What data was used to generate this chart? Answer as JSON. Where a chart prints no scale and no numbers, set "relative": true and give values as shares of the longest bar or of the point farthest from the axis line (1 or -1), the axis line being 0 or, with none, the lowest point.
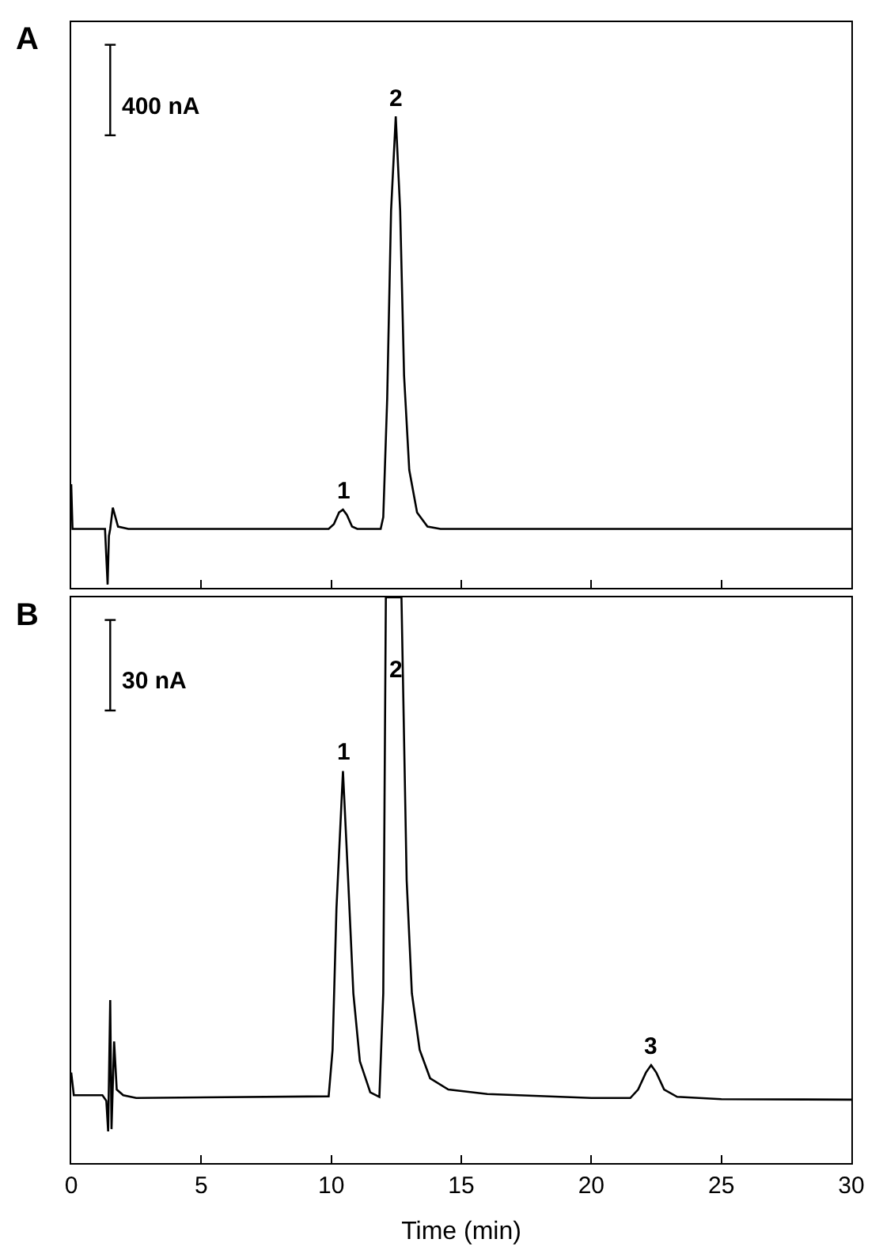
{
  "chart_data": [
    {
      "type": "line",
      "title": "A",
      "relative": true,
      "tick_labels": false,
      "xlim": [
        0,
        30
      ],
      "xticks": [
        0,
        5,
        10,
        15,
        20,
        25,
        30
      ],
      "marker": "none",
      "line_style": "solid",
      "x": [
        0,
        0.05,
        1.3,
        1.4,
        1.45,
        1.5,
        1.6,
        1.8,
        2.2,
        9.9,
        10.1,
        10.3,
        10.45,
        10.6,
        10.8,
        11.0,
        11.9,
        12.0,
        12.15,
        12.3,
        12.48,
        12.65,
        12.8,
        13.0,
        13.3,
        13.7,
        14.2,
        30
      ],
      "series": [
        {
          "color": "#000000",
          "values": [
            0.22,
            0.125,
            0.125,
            0.007,
            0.11,
            0.125,
            0.17,
            0.13,
            0.125,
            0.125,
            0.135,
            0.16,
            0.166,
            0.155,
            0.13,
            0.125,
            0.125,
            0.15,
            0.4,
            0.8,
            1,
            0.8,
            0.45,
            0.25,
            0.16,
            0.13,
            0.125,
            0.125
          ]
        }
      ],
      "annotations": [
        "400 nA",
        {
          "text": "1",
          "x": 10.45,
          "y": 0.166
        },
        {
          "text": "2",
          "x": 12.48,
          "y": 1
        }
      ]
    },
    {
      "type": "line",
      "title": "B",
      "relative": true,
      "tick_labels": "x",
      "xlabel": "Time (min)",
      "xlim": [
        0,
        30
      ],
      "xticks": [
        0,
        5,
        10,
        15,
        20,
        25,
        30
      ],
      "marker": "none",
      "line_style": "solid",
      "x": [
        0,
        0.1,
        1.2,
        1.35,
        1.42,
        1.5,
        1.55,
        1.65,
        1.75,
        2.0,
        2.5,
        9.9,
        10.05,
        10.2,
        10.45,
        10.65,
        10.85,
        11.1,
        11.5,
        11.85,
        12.0,
        12.1,
        12.7,
        12.9,
        13.1,
        13.4,
        13.8,
        14.5,
        16,
        20,
        21.5,
        21.8,
        22.1,
        22.3,
        22.5,
        22.8,
        23.3,
        25,
        30
      ],
      "series": [
        {
          "color": "#000000",
          "values": [
            0.16,
            0.12,
            0.12,
            0.11,
            0.056,
            0.288,
            0.06,
            0.215,
            0.13,
            0.12,
            0.115,
            0.118,
            0.2,
            0.45,
            0.693,
            0.5,
            0.3,
            0.18,
            0.125,
            0.117,
            0.3,
            1.0,
            1.0,
            0.5,
            0.3,
            0.2,
            0.15,
            0.13,
            0.122,
            0.115,
            0.115,
            0.13,
            0.16,
            0.173,
            0.16,
            0.13,
            0.117,
            0.113,
            0.112
          ]
        }
      ],
      "annotations": [
        "30 nA",
        {
          "text": "1",
          "x": 10.45,
          "y": 0.693
        },
        {
          "text": "2",
          "x": 12.45,
          "y": 0.84
        },
        {
          "text": "3",
          "x": 22.3,
          "y": 0.173
        }
      ]
    }
  ]
}
